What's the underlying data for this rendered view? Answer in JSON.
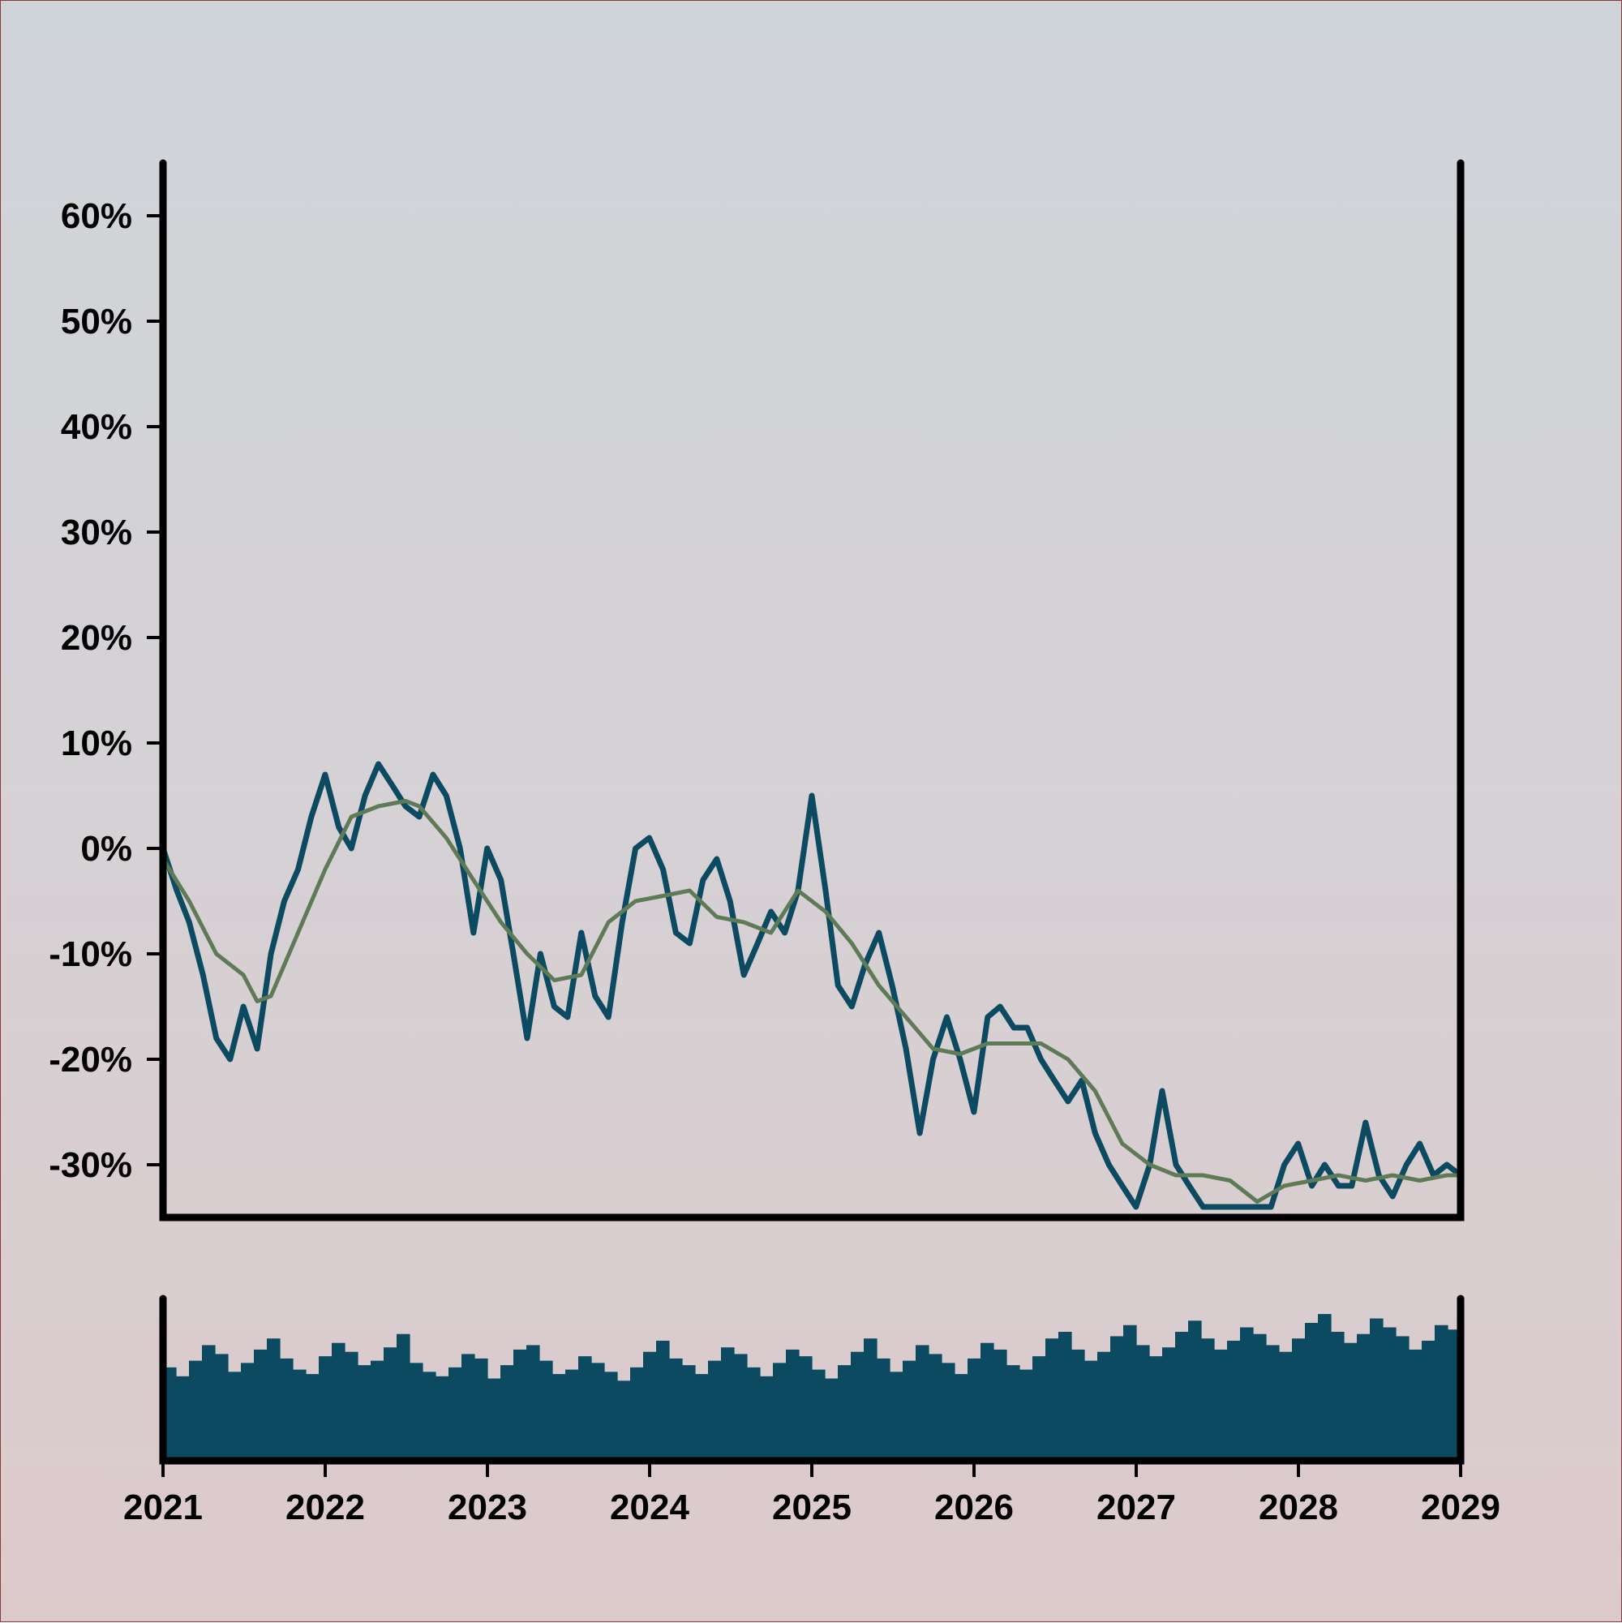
{
  "colors": {
    "price": "#0b4a60",
    "moving_average": "#5f7a57",
    "volume": "#0b4a60",
    "axis": "#000000"
  },
  "chart_data": [
    {
      "type": "line",
      "title": "",
      "xlabel": "",
      "ylabel": "",
      "xlim": [
        "2021-01-01",
        "2029-01-01"
      ],
      "ylim": [
        -35,
        65
      ],
      "yticks": [
        -30,
        -20,
        -10,
        0,
        10,
        20,
        30,
        40,
        50,
        60
      ],
      "ytick_labels": [
        "-30%",
        "-20%",
        "-10%",
        "0%",
        "10%",
        "20%",
        "30%",
        "40%",
        "50%",
        "60%"
      ],
      "grid": false,
      "legend": "none",
      "series": [
        {
          "key": "price",
          "x": [
            "2021-01-01",
            "2021-02-01",
            "2021-03-01",
            "2021-04-01",
            "2021-05-01",
            "2021-06-01",
            "2021-07-01",
            "2021-08-01",
            "2021-09-01",
            "2021-10-01",
            "2021-11-01",
            "2021-12-01",
            "2022-01-01",
            "2022-02-01",
            "2022-03-01",
            "2022-04-01",
            "2022-05-01",
            "2022-06-01",
            "2022-07-01",
            "2022-08-01",
            "2022-09-01",
            "2022-10-01",
            "2022-11-01",
            "2022-12-01",
            "2023-01-01",
            "2023-02-01",
            "2023-03-01",
            "2023-04-01",
            "2023-05-01",
            "2023-06-01",
            "2023-07-01",
            "2023-08-01",
            "2023-09-01",
            "2023-10-01",
            "2023-11-01",
            "2023-12-01",
            "2024-01-01",
            "2024-02-01",
            "2024-03-01",
            "2024-04-01",
            "2024-05-01",
            "2024-06-01",
            "2024-07-01",
            "2024-08-01",
            "2024-09-01",
            "2024-10-01",
            "2024-11-01",
            "2024-12-01",
            "2025-01-01",
            "2025-02-01",
            "2025-03-01",
            "2025-04-01",
            "2025-05-01",
            "2025-06-01",
            "2025-07-01",
            "2025-08-01",
            "2025-09-01",
            "2025-10-01",
            "2025-11-01",
            "2025-12-01",
            "2026-01-01",
            "2026-02-01",
            "2026-03-01",
            "2026-04-01",
            "2026-05-01",
            "2026-06-01",
            "2026-07-01",
            "2026-08-01",
            "2026-09-01",
            "2026-10-01",
            "2026-11-01",
            "2026-12-01",
            "2027-01-01",
            "2027-02-01",
            "2027-03-01",
            "2027-04-01",
            "2027-05-01",
            "2027-06-01",
            "2027-07-01",
            "2027-08-01",
            "2027-09-01",
            "2027-10-01",
            "2027-11-01",
            "2027-12-01",
            "2028-01-01",
            "2028-02-01",
            "2028-03-01",
            "2028-04-01",
            "2028-05-01",
            "2028-06-01",
            "2028-07-01",
            "2028-08-01",
            "2028-09-01",
            "2028-10-01",
            "2028-11-01",
            "2028-12-01",
            "2029-01-01"
          ],
          "values": [
            0,
            -4,
            -7,
            -12,
            -18,
            -20,
            -15,
            -19,
            -10,
            -5,
            -2,
            3,
            7,
            2,
            0,
            5,
            8,
            6,
            4,
            3,
            7,
            5,
            0,
            -8,
            0,
            -3,
            -10,
            -18,
            -10,
            -15,
            -16,
            -8,
            -14,
            -16,
            -7,
            0,
            1,
            -2,
            -8,
            -9,
            -3,
            -1,
            -5,
            -12,
            -9,
            -6,
            -8,
            -4,
            5,
            -4,
            -13,
            -15,
            -11,
            -8,
            -13,
            -19,
            -27,
            -20,
            -16,
            -20,
            -25,
            -16,
            -15,
            -17,
            -17,
            -20,
            -22,
            -24,
            -22,
            -27,
            -30,
            -32,
            -34,
            -30,
            -23,
            -30,
            -32,
            -34,
            -34,
            -34,
            -34,
            -34,
            -34,
            -30,
            -28,
            -32,
            -30,
            -32,
            -32,
            -26,
            -31,
            -33,
            -30,
            -28,
            -31,
            -30,
            -31
          ]
        },
        {
          "key": "moving_average",
          "x": [
            "2021-01-01",
            "2021-03-01",
            "2021-05-01",
            "2021-07-01",
            "2021-08-01",
            "2021-09-01",
            "2021-11-01",
            "2022-01-01",
            "2022-03-01",
            "2022-05-01",
            "2022-07-01",
            "2022-08-01",
            "2022-10-01",
            "2022-12-01",
            "2023-02-01",
            "2023-04-01",
            "2023-06-01",
            "2023-08-01",
            "2023-10-01",
            "2023-12-01",
            "2024-02-01",
            "2024-04-01",
            "2024-06-01",
            "2024-08-01",
            "2024-10-01",
            "2024-12-01",
            "2025-02-01",
            "2025-04-01",
            "2025-06-01",
            "2025-08-01",
            "2025-10-01",
            "2025-12-01",
            "2026-02-01",
            "2026-04-01",
            "2026-06-01",
            "2026-08-01",
            "2026-10-01",
            "2026-12-01",
            "2027-02-01",
            "2027-04-01",
            "2027-06-01",
            "2027-08-01",
            "2027-10-01",
            "2027-12-01",
            "2028-02-01",
            "2028-04-01",
            "2028-06-01",
            "2028-08-01",
            "2028-10-01",
            "2028-12-01",
            "2029-01-01"
          ],
          "values": [
            -1,
            -5,
            -10,
            -12,
            -14.5,
            -14,
            -8,
            -2,
            3,
            4,
            4.5,
            4,
            1,
            -3,
            -7,
            -10,
            -12.5,
            -12,
            -7,
            -5,
            -4.5,
            -4,
            -6.5,
            -7,
            -8,
            -4,
            -6,
            -9,
            -13,
            -16,
            -19,
            -19.5,
            -18.5,
            -18.5,
            -18.5,
            -20,
            -23,
            -28,
            -30,
            -31,
            -31,
            -31.5,
            -33.5,
            -32,
            -31.5,
            -31,
            -31.5,
            -31,
            -31.5,
            -31,
            -31
          ]
        }
      ]
    },
    {
      "type": "bar",
      "title": "",
      "xlabel": "",
      "ylabel": "",
      "xlim": [
        "2021-01-01",
        "2029-01-01"
      ],
      "xticks": [
        "2021",
        "2022",
        "2023",
        "2024",
        "2025",
        "2026",
        "2027",
        "2028",
        "2029"
      ],
      "grid": false,
      "legend": "none",
      "series": [
        {
          "key": "volume",
          "values": [
            42,
            38,
            45,
            52,
            48,
            40,
            44,
            50,
            55,
            46,
            41,
            39,
            47,
            53,
            49,
            43,
            45,
            51,
            57,
            44,
            40,
            38,
            42,
            48,
            46,
            37,
            43,
            50,
            52,
            45,
            39,
            41,
            47,
            44,
            40,
            36,
            42,
            49,
            54,
            46,
            43,
            39,
            45,
            51,
            48,
            42,
            38,
            44,
            50,
            47,
            41,
            37,
            43,
            49,
            55,
            46,
            40,
            45,
            52,
            48,
            44,
            39,
            46,
            53,
            50,
            43,
            41,
            47,
            55,
            58,
            50,
            45,
            49,
            56,
            61,
            52,
            47,
            51,
            58,
            63,
            55,
            50,
            54,
            60,
            57,
            52,
            49,
            55,
            62,
            66,
            58,
            53,
            57,
            64,
            60,
            56,
            50,
            54,
            61,
            59
          ]
        }
      ]
    }
  ]
}
